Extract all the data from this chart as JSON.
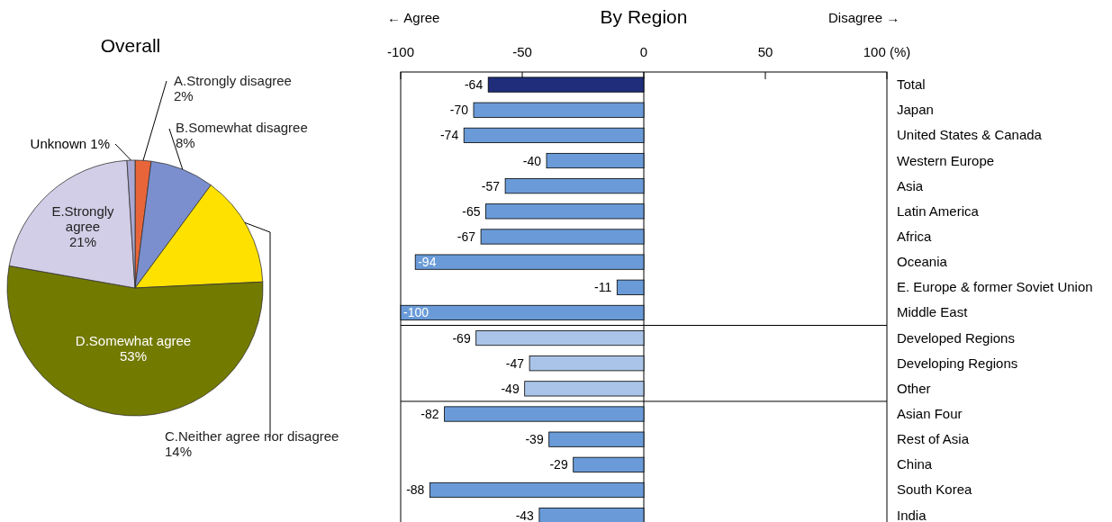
{
  "chart_data": [
    {
      "type": "pie",
      "title": "Overall",
      "categories": [
        "A.Strongly disagree",
        "B.Somewhat disagree",
        "C.Neither agree nor disagree",
        "D.Somewhat agree",
        "E.Strongly agree",
        "Unknown"
      ],
      "values": [
        2,
        8,
        14,
        53,
        21,
        1
      ],
      "value_labels": [
        "2%",
        "8%",
        "14%",
        "53%",
        "21%",
        "1%"
      ],
      "colors": [
        "#e8653a",
        "#7b8fce",
        "#ffe100",
        "#737a00",
        "#d2cee7",
        "#a9a8d2"
      ]
    },
    {
      "type": "bar",
      "orientation": "horizontal",
      "title": "By Region",
      "annotations": [
        "← Agree",
        "Disagree →"
      ],
      "categories": [
        "Total",
        "Japan",
        "United States & Canada",
        "Western Europe",
        "Asia",
        "Latin America",
        "Africa",
        "Oceania",
        "E. Europe & former Soviet Union",
        "Middle East",
        "Developed Regions",
        "Developing Regions",
        "Other",
        "Asian Four",
        "Rest of Asia",
        "China",
        "South Korea",
        "India"
      ],
      "values": [
        -64,
        -70,
        -74,
        -40,
        -57,
        -65,
        -67,
        -94,
        -11,
        -100,
        -69,
        -47,
        -49,
        -82,
        -39,
        -29,
        -88,
        -43
      ],
      "colors": [
        "#1f2d7a",
        "#6a9bd8",
        "#6a9bd8",
        "#6a9bd8",
        "#6a9bd8",
        "#6a9bd8",
        "#6a9bd8",
        "#6a9bd8",
        "#6a9bd8",
        "#6a9bd8",
        "#a9c4e8",
        "#a9c4e8",
        "#a9c4e8",
        "#6a9bd8",
        "#6a9bd8",
        "#6a9bd8",
        "#6a9bd8",
        "#6a9bd8"
      ],
      "data_labels": true,
      "xlim": [
        -100,
        100
      ],
      "xticks": [
        -100,
        -50,
        0,
        50,
        {
          "value": 100,
          "label": "100 (%)"
        }
      ],
      "ref_lines": [
        {
          "axis": "x",
          "value": 0,
          "color": "#000000"
        }
      ]
    }
  ]
}
